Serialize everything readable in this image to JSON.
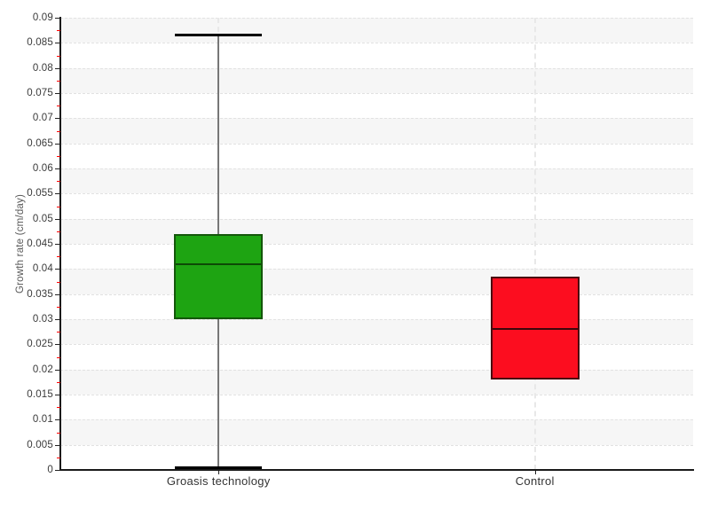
{
  "chart_data": {
    "type": "boxplot",
    "ylabel": "Growth rate (cm/day)",
    "categories": [
      "Groasis technology",
      "Control"
    ],
    "ylim": [
      0,
      0.09
    ],
    "ytick_step": 0.005,
    "minor_tick_interval": 0.0025,
    "grid": true,
    "legend": false,
    "ytick_values": [
      0,
      0.005,
      0.01,
      0.015,
      0.02,
      0.025,
      0.03,
      0.035,
      0.04,
      0.045,
      0.05,
      0.055,
      0.06,
      0.065,
      0.07,
      0.075,
      0.08,
      0.085,
      0.09
    ],
    "ytick_labels": [
      "0",
      "0.005",
      "0.01",
      "0.015",
      "0.02",
      "0.025",
      "0.03",
      "0.035",
      "0.04",
      "0.045",
      "0.05",
      "0.055",
      "0.06",
      "0.065",
      "0.07",
      "0.075",
      "0.08",
      "0.085",
      "0.09"
    ],
    "series": [
      {
        "name": "Groasis technology",
        "whisker_low": 0.0005,
        "q1": 0.03,
        "median": 0.041,
        "q3": 0.047,
        "whisker_high": 0.0865,
        "fill": "#1ea412",
        "border": "#14570b",
        "median_color": "#0d4a06"
      },
      {
        "name": "Control",
        "q1": 0.018,
        "median": 0.028,
        "q3": 0.0385,
        "fill": "#fc0d1f",
        "border": "#4a090f",
        "median_color": "#3c070c"
      }
    ],
    "colors": {
      "stripe": "#f6f6f6",
      "grid": "#e2e2e2",
      "category_guide": "#e8e8e8",
      "axis": "#1a1a1a",
      "major_tick": "#222222",
      "minor_tick": "#ff0000",
      "tick_label": "#3a3a3a",
      "category_label": "#333333",
      "axis_title": "#585858",
      "whisker": "#777777",
      "whisker_cap": "#000000"
    }
  }
}
